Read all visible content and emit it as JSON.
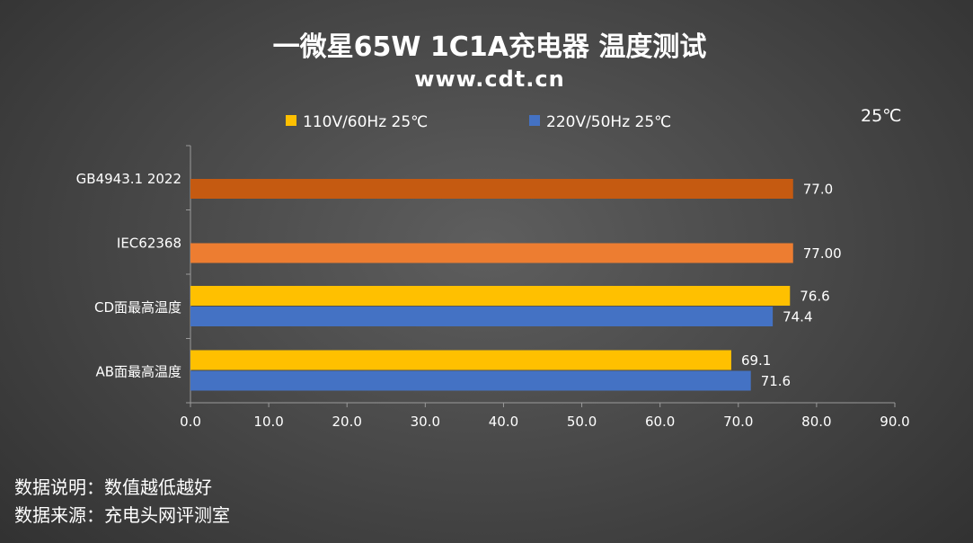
{
  "chart_data": {
    "type": "bar",
    "orientation": "horizontal",
    "title": "一微星65W 1C1A充电器 温度测试",
    "subtitle": "www.cdt.cn",
    "unit_label": "25℃",
    "categories": [
      "GB4943.1 2022",
      "IEC62368",
      "CD面最高温度",
      "AB面最高温度"
    ],
    "series": [
      {
        "name": "110V/60Hz 25℃",
        "color": "#FFC000"
      },
      {
        "name": "220V/50Hz 25℃",
        "color": "#4472C4"
      }
    ],
    "bars": [
      {
        "category": "GB4943.1 2022",
        "value": 77.0,
        "label": "77.0",
        "color": "#C55A11"
      },
      {
        "category": "IEC62368",
        "value": 77.0,
        "label": "77.00",
        "color": "#ED7D31"
      },
      {
        "category": "CD面最高温度",
        "series": "110V/60Hz 25℃",
        "value": 76.6,
        "label": "76.6",
        "color": "#FFC000"
      },
      {
        "category": "CD面最高温度",
        "series": "220V/50Hz 25℃",
        "value": 74.4,
        "label": "74.4",
        "color": "#4472C4"
      },
      {
        "category": "AB面最高温度",
        "series": "110V/60Hz 25℃",
        "value": 69.1,
        "label": "69.1",
        "color": "#FFC000"
      },
      {
        "category": "AB面最高温度",
        "series": "220V/50Hz 25℃",
        "value": 71.6,
        "label": "71.6",
        "color": "#4472C4"
      }
    ],
    "xlim": [
      0,
      90
    ],
    "x_ticks": [
      "0.0",
      "10.0",
      "20.0",
      "30.0",
      "40.0",
      "50.0",
      "60.0",
      "70.0",
      "80.0",
      "90.0"
    ],
    "grid": false,
    "legend_position": "top"
  },
  "notes": {
    "line1": "数据说明：数值越低越好",
    "line2": "数据来源：充电头网评测室"
  }
}
